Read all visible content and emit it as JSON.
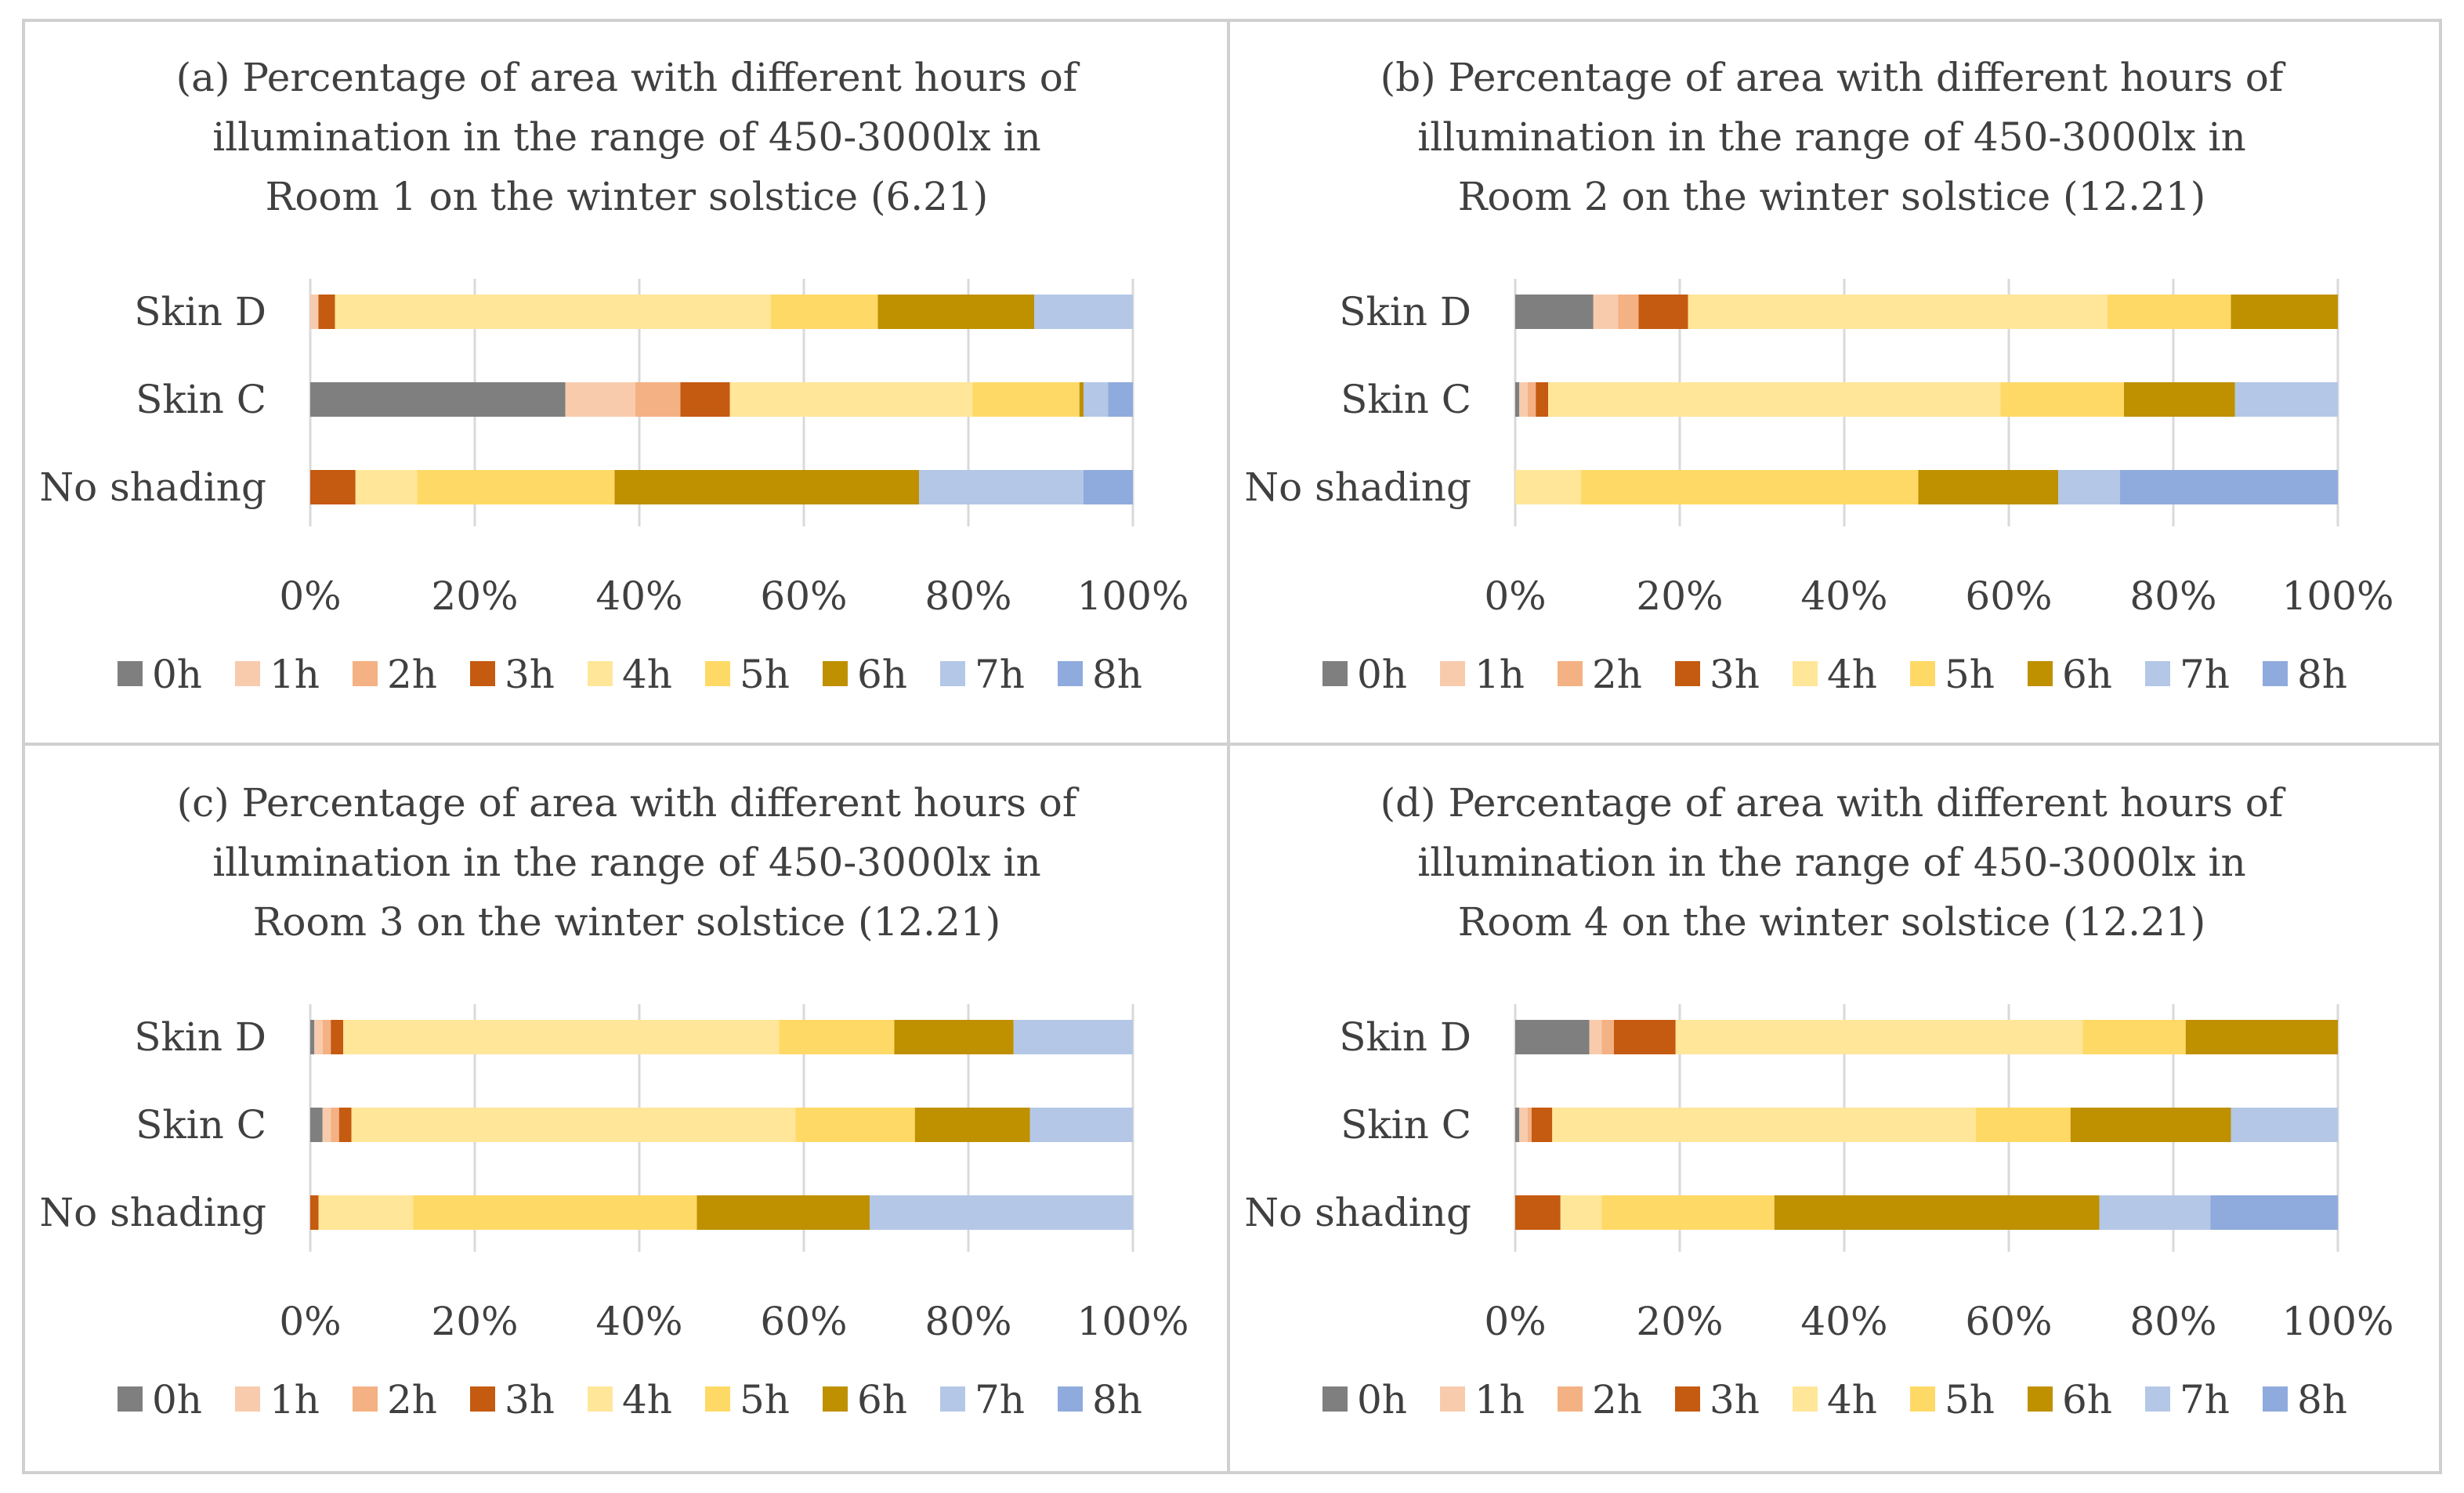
{
  "colors": {
    "0h": "#7f7f7f",
    "1h": "#f8cbad",
    "2h": "#f4b183",
    "3h": "#c55a11",
    "4h": "#ffe699",
    "5h": "#ffd966",
    "6h": "#bf9000",
    "7h": "#b4c7e7",
    "8h": "#8faadc"
  },
  "chart_data": [
    {
      "type": "bar",
      "orientation": "horizontal",
      "stacked": "percent",
      "title": "(a) Percentage of area with different hours of illumination in the range of 450-3000lx in Room 1 on the winter solstice (6.21)",
      "title_lines": [
        "(a) Percentage of area with different hours of",
        "illumination in the range of 450-3000lx in",
        "Room 1 on the winter solstice (6.21)"
      ],
      "categories": [
        "Skin D",
        "Skin C",
        "No shading"
      ],
      "series": [
        {
          "name": "0h",
          "values": [
            0,
            31,
            0
          ]
        },
        {
          "name": "1h",
          "values": [
            1,
            8.5,
            0
          ]
        },
        {
          "name": "2h",
          "values": [
            0,
            5.5,
            0
          ]
        },
        {
          "name": "3h",
          "values": [
            2,
            6,
            5.5
          ]
        },
        {
          "name": "4h",
          "values": [
            53,
            29.5,
            7.5
          ]
        },
        {
          "name": "5h",
          "values": [
            13,
            13,
            24
          ]
        },
        {
          "name": "6h",
          "values": [
            19,
            0.5,
            37
          ]
        },
        {
          "name": "7h",
          "values": [
            12,
            3,
            20
          ]
        },
        {
          "name": "8h",
          "values": [
            0,
            3,
            6
          ]
        }
      ],
      "xlim": [
        0,
        100
      ],
      "xticks": [
        "0%",
        "20%",
        "40%",
        "60%",
        "80%",
        "100%"
      ],
      "legend": [
        "0h",
        "1h",
        "2h",
        "3h",
        "4h",
        "5h",
        "6h",
        "7h",
        "8h"
      ]
    },
    {
      "type": "bar",
      "orientation": "horizontal",
      "stacked": "percent",
      "title": "(b) Percentage of area with different hours of illumination in the range of 450-3000lx in Room 2 on the winter solstice (12.21)",
      "title_lines": [
        "(b) Percentage of area with different hours of",
        "illumination in the range of 450-3000lx in",
        "Room 2 on the winter solstice (12.21)"
      ],
      "categories": [
        "Skin D",
        "Skin C",
        "No shading"
      ],
      "series": [
        {
          "name": "0h",
          "values": [
            9.5,
            0.5,
            0
          ]
        },
        {
          "name": "1h",
          "values": [
            3,
            1,
            0
          ]
        },
        {
          "name": "2h",
          "values": [
            2.5,
            1,
            0
          ]
        },
        {
          "name": "3h",
          "values": [
            6,
            1.5,
            0
          ]
        },
        {
          "name": "4h",
          "values": [
            51,
            55,
            8
          ]
        },
        {
          "name": "5h",
          "values": [
            15,
            15,
            41
          ]
        },
        {
          "name": "6h",
          "values": [
            13,
            13.5,
            17
          ]
        },
        {
          "name": "7h",
          "values": [
            0,
            12.5,
            7.5
          ]
        },
        {
          "name": "8h",
          "values": [
            0,
            0,
            26.5
          ]
        }
      ],
      "xlim": [
        0,
        100
      ],
      "xticks": [
        "0%",
        "20%",
        "40%",
        "60%",
        "80%",
        "100%"
      ],
      "legend": [
        "0h",
        "1h",
        "2h",
        "3h",
        "4h",
        "5h",
        "6h",
        "7h",
        "8h"
      ]
    },
    {
      "type": "bar",
      "orientation": "horizontal",
      "stacked": "percent",
      "title": "(c) Percentage of area with different hours of illumination in the range of 450-3000lx in Room 3 on the winter solstice (12.21)",
      "title_lines": [
        "(c) Percentage of area with different hours of",
        "illumination in the range of 450-3000lx in",
        "Room 3 on the winter solstice (12.21)"
      ],
      "categories": [
        "Skin D",
        "Skin C",
        "No shading"
      ],
      "series": [
        {
          "name": "0h",
          "values": [
            0.5,
            1.5,
            0
          ]
        },
        {
          "name": "1h",
          "values": [
            1,
            1,
            0
          ]
        },
        {
          "name": "2h",
          "values": [
            1,
            1,
            0
          ]
        },
        {
          "name": "3h",
          "values": [
            1.5,
            1.5,
            1
          ]
        },
        {
          "name": "4h",
          "values": [
            53,
            54,
            11.5
          ]
        },
        {
          "name": "5h",
          "values": [
            14,
            14.5,
            34.5
          ]
        },
        {
          "name": "6h",
          "values": [
            14.5,
            14,
            21
          ]
        },
        {
          "name": "7h",
          "values": [
            14.5,
            12.5,
            32
          ]
        },
        {
          "name": "8h",
          "values": [
            0,
            0,
            0
          ]
        }
      ],
      "xlim": [
        0,
        100
      ],
      "xticks": [
        "0%",
        "20%",
        "40%",
        "60%",
        "80%",
        "100%"
      ],
      "legend": [
        "0h",
        "1h",
        "2h",
        "3h",
        "4h",
        "5h",
        "6h",
        "7h",
        "8h"
      ]
    },
    {
      "type": "bar",
      "orientation": "horizontal",
      "stacked": "percent",
      "title": "(d) Percentage of area with different hours of illumination in the range of 450-3000lx in Room 4 on the winter solstice (12.21)",
      "title_lines": [
        "(d) Percentage of area with different hours of",
        "illumination in the range of 450-3000lx in",
        "Room 4 on the winter solstice (12.21)"
      ],
      "categories": [
        "Skin D",
        "Skin C",
        "No shading"
      ],
      "series": [
        {
          "name": "0h",
          "values": [
            9,
            0.5,
            0
          ]
        },
        {
          "name": "1h",
          "values": [
            1.5,
            1,
            0
          ]
        },
        {
          "name": "2h",
          "values": [
            1.5,
            0.5,
            0
          ]
        },
        {
          "name": "3h",
          "values": [
            7.5,
            2.5,
            5.5
          ]
        },
        {
          "name": "4h",
          "values": [
            49.5,
            51.5,
            5
          ]
        },
        {
          "name": "5h",
          "values": [
            12.5,
            11.5,
            21
          ]
        },
        {
          "name": "6h",
          "values": [
            18.5,
            19.5,
            39.5
          ]
        },
        {
          "name": "7h",
          "values": [
            0,
            13,
            13.5
          ]
        },
        {
          "name": "8h",
          "values": [
            0,
            0,
            15.5
          ]
        }
      ],
      "xlim": [
        0,
        100
      ],
      "xticks": [
        "0%",
        "20%",
        "40%",
        "60%",
        "80%",
        "100%"
      ],
      "legend": [
        "0h",
        "1h",
        "2h",
        "3h",
        "4h",
        "5h",
        "6h",
        "7h",
        "8h"
      ]
    }
  ]
}
